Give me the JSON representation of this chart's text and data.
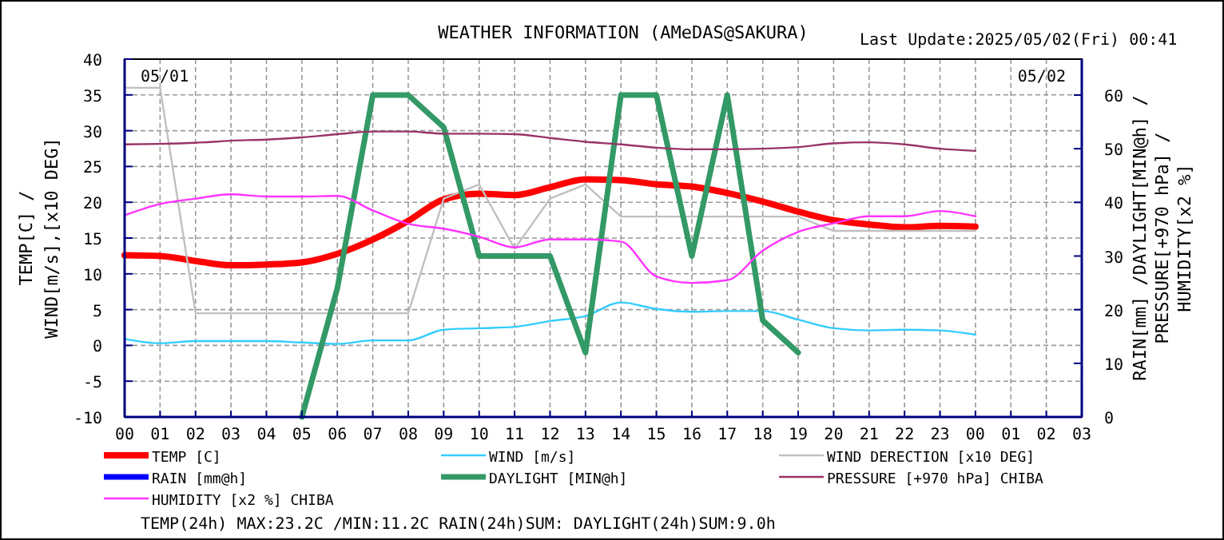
{
  "chart_data": {
    "type": "line",
    "title": "WEATHER INFORMATION (AMeDAS@SAKURA)",
    "subtitle": "Last Update:2025/05/02(Fri) 00:41",
    "ylabel": "TEMP[C] /\nWIND[m/s],[x10 DEG]",
    "y2label": "RAIN[mm] /DAYLIGHT[MIN@h] /\nPRESSURE[+970 hPa] /\nHUMIDITY[x2 %]",
    "x": [
      0,
      1,
      2,
      3,
      4,
      5,
      6,
      7,
      8,
      9,
      10,
      11,
      12,
      13,
      14,
      15,
      16,
      17,
      18,
      19,
      20,
      21,
      22,
      23,
      24
    ],
    "xlim": [
      0,
      27
    ],
    "xticks": [
      {
        "value": 0,
        "label": "00"
      },
      {
        "value": 1,
        "label": "01"
      },
      {
        "value": 2,
        "label": "02"
      },
      {
        "value": 3,
        "label": "03"
      },
      {
        "value": 4,
        "label": "04"
      },
      {
        "value": 5,
        "label": "05"
      },
      {
        "value": 6,
        "label": "06"
      },
      {
        "value": 7,
        "label": "07"
      },
      {
        "value": 8,
        "label": "08"
      },
      {
        "value": 9,
        "label": "09"
      },
      {
        "value": 10,
        "label": "10"
      },
      {
        "value": 11,
        "label": "11"
      },
      {
        "value": 12,
        "label": "12"
      },
      {
        "value": 13,
        "label": "13"
      },
      {
        "value": 14,
        "label": "14"
      },
      {
        "value": 15,
        "label": "15"
      },
      {
        "value": 16,
        "label": "16"
      },
      {
        "value": 17,
        "label": "17"
      },
      {
        "value": 18,
        "label": "18"
      },
      {
        "value": 19,
        "label": "19"
      },
      {
        "value": 20,
        "label": "20"
      },
      {
        "value": 21,
        "label": "21"
      },
      {
        "value": 22,
        "label": "22"
      },
      {
        "value": 23,
        "label": "23"
      },
      {
        "value": 24,
        "label": "00"
      },
      {
        "value": 25,
        "label": "01"
      },
      {
        "value": 26,
        "label": "02"
      },
      {
        "value": 27,
        "label": "03"
      }
    ],
    "ylim": [
      -10,
      40
    ],
    "yticks": [
      -10,
      -5,
      0,
      5,
      10,
      15,
      20,
      25,
      30,
      35,
      40
    ],
    "y2lim": [
      0,
      66.7
    ],
    "y2ticks": [
      0,
      10,
      20,
      30,
      40,
      50,
      60
    ],
    "grid": true,
    "legend": "bottom",
    "marker": "none",
    "line_style": "solid",
    "series": [
      {
        "name": "TEMP [C]",
        "color": "#ff0000",
        "values": [
          12.6,
          12.5,
          11.8,
          11.2,
          11.3,
          11.6,
          12.8,
          14.8,
          17.4,
          20.4,
          21.2,
          21.0,
          22.1,
          23.2,
          23.1,
          22.5,
          22.2,
          21.3,
          20.1,
          18.7,
          17.5,
          16.9,
          16.5,
          16.7,
          16.6
        ]
      },
      {
        "name": "WIND [m/s]",
        "color": "#33ccff",
        "values": [
          0.9,
          0.3,
          0.6,
          0.6,
          0.6,
          0.4,
          0.2,
          0.7,
          0.7,
          2.2,
          2.4,
          2.6,
          3.4,
          4.1,
          6.0,
          5.1,
          4.7,
          4.8,
          4.8,
          3.6,
          2.4,
          2.1,
          2.2,
          2.1,
          1.5
        ]
      },
      {
        "name": "WIND DERECTION [x10 DEG]",
        "color": "#c0c0c0",
        "values": [
          36,
          36,
          4.5,
          4.5,
          4.5,
          4.5,
          4.5,
          4.5,
          4.5,
          20.5,
          22.5,
          13.5,
          20.5,
          22.5,
          18,
          18,
          18,
          18,
          18,
          18,
          16,
          16,
          16,
          16,
          16
        ]
      },
      {
        "name": "RAIN [mm@h]",
        "color": "#0000ff",
        "axis": "y2",
        "values": [
          null,
          null,
          null,
          null,
          null,
          null,
          null,
          null,
          null,
          null,
          null,
          null,
          null,
          null,
          null,
          null,
          null,
          null,
          null,
          null,
          null,
          null,
          null,
          null,
          null
        ]
      },
      {
        "name": "DAYLIGHT [MIN@h]",
        "color": "#339966",
        "axis": "y2",
        "values": [
          null,
          null,
          null,
          null,
          null,
          0,
          24,
          60,
          60,
          54,
          30,
          30,
          30,
          12,
          60,
          60,
          30,
          60,
          18,
          12,
          null,
          null,
          null,
          null,
          null
        ]
      },
      {
        "name": "PRESSURE [+970 hPa] CHIBA",
        "color": "#993366",
        "axis": "y2",
        "values": [
          50.8,
          50.9,
          51.1,
          51.5,
          51.7,
          52.1,
          52.7,
          53.2,
          53.2,
          52.8,
          52.8,
          52.7,
          52.0,
          51.3,
          50.8,
          50.2,
          49.9,
          49.9,
          50.0,
          50.3,
          51.0,
          51.2,
          50.8,
          50.0,
          49.6
        ]
      },
      {
        "name": "HUMIDITY [x2 %] CHIBA",
        "color": "#ff33ff",
        "axis": "y2",
        "values": [
          37.6,
          39.7,
          40.7,
          41.5,
          41.1,
          41.1,
          41.2,
          38.5,
          36.0,
          35.1,
          33.6,
          31.6,
          33.1,
          33.1,
          32.7,
          26.2,
          25.0,
          25.5,
          31.0,
          34.5,
          36.1,
          37.4,
          37.4,
          38.4,
          37.4
        ]
      }
    ],
    "annotations": [
      "05/01",
      "05/02",
      "TEMP(24h) MAX:23.2C /MIN:11.2C  RAIN(24h)SUM:  DAYLIGHT(24h)SUM:9.0h"
    ]
  }
}
